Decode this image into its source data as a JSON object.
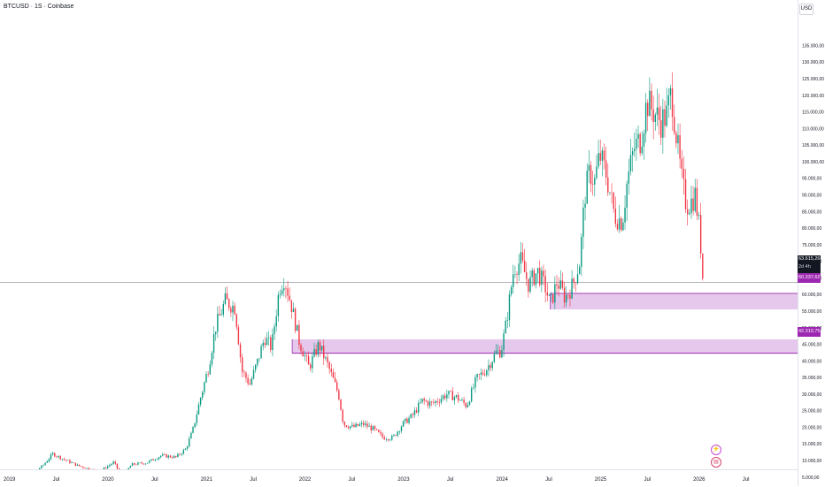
{
  "header": {
    "symbol_title": "BTCUSD · 1S · Coinbase",
    "currency": "USD"
  },
  "price_axis": {
    "ticks": [
      135000,
      130000,
      125000,
      120000,
      115000,
      110000,
      105000,
      100000,
      95000,
      90000,
      85000,
      80000,
      75000,
      70000,
      65000,
      60000,
      55000,
      50000,
      45000,
      40000,
      35000,
      30000,
      25000,
      20000,
      15000,
      10000,
      5000
    ],
    "tick_labels": [
      "135.000,00",
      "130.000,00",
      "125.000,00",
      "120.000,00",
      "115.000,00",
      "110.000,00",
      "105.000,00",
      "100.000,00",
      "95.000,00",
      "90.000,00",
      "85.000,00",
      "80.000,00",
      "75.000,00",
      "70.000,00",
      "65.000,00",
      "60.000,00",
      "55.000,00",
      "50.000,00",
      "45.000,00",
      "40.000,00",
      "35.000,00",
      "30.000,00",
      "25.000,00",
      "20.000,00",
      "15.000,00",
      "10.000,00",
      "5.000,00"
    ]
  },
  "time_axis": {
    "labels": [
      {
        "text": "2019",
        "date": 2019.0
      },
      {
        "text": "Jul",
        "date": 2019.5
      },
      {
        "text": "2020",
        "date": 2020.0
      },
      {
        "text": "Jul",
        "date": 2020.5
      },
      {
        "text": "2021",
        "date": 2021.0
      },
      {
        "text": "Jul",
        "date": 2021.5
      },
      {
        "text": "2022",
        "date": 2022.0
      },
      {
        "text": "Jul",
        "date": 2022.5
      },
      {
        "text": "2023",
        "date": 2023.0
      },
      {
        "text": "Jul",
        "date": 2023.5
      },
      {
        "text": "2024",
        "date": 2024.0
      },
      {
        "text": "Jul",
        "date": 2024.5
      },
      {
        "text": "2025",
        "date": 2025.0
      },
      {
        "text": "Jul",
        "date": 2025.5
      },
      {
        "text": "2026",
        "date": 2026.0
      },
      {
        "text": "Jul",
        "date": 2026.5
      }
    ]
  },
  "badges": {
    "current_price": "63.615,26",
    "countdown": "2d 4h",
    "zone1_label": "60.337,62",
    "zone2_label": "42.310,75"
  },
  "colors": {
    "up": "#089981",
    "down": "#f23645",
    "zone_fill": "#e1bee7",
    "zone_border": "#9c27b0",
    "current_line": "#9598a1",
    "grid_text": "#131722"
  },
  "icons": {
    "event1": "lightning-icon",
    "event2": "us-flag-icon"
  },
  "chart_data": {
    "type": "candlestick",
    "title": "BTCUSD · 1S · Coinbase",
    "ylim": [
      2000,
      140000
    ],
    "xlim": [
      "2019-01",
      "2026-10"
    ],
    "current_price": 63615.26,
    "zones": [
      {
        "label": "60.337,62",
        "from_date": 2024.55,
        "low": 55500,
        "high": 60337.62
      },
      {
        "label": "42.310,75",
        "from_date": 2021.93,
        "low": 42310.75,
        "high": 46500
      }
    ],
    "close_path": [
      [
        2019.0,
        3800
      ],
      [
        2019.12,
        3900
      ],
      [
        2019.25,
        5000
      ],
      [
        2019.4,
        8500
      ],
      [
        2019.5,
        12000
      ],
      [
        2019.6,
        10500
      ],
      [
        2019.75,
        8500
      ],
      [
        2019.9,
        7200
      ],
      [
        2020.0,
        7200
      ],
      [
        2020.12,
        9500
      ],
      [
        2020.2,
        5000
      ],
      [
        2020.3,
        8800
      ],
      [
        2020.45,
        9300
      ],
      [
        2020.6,
        11500
      ],
      [
        2020.75,
        11000
      ],
      [
        2020.85,
        13500
      ],
      [
        2020.92,
        19000
      ],
      [
        2021.0,
        29000
      ],
      [
        2021.08,
        38000
      ],
      [
        2021.15,
        50000
      ],
      [
        2021.25,
        58000
      ],
      [
        2021.35,
        56000
      ],
      [
        2021.42,
        37000
      ],
      [
        2021.5,
        33000
      ],
      [
        2021.58,
        40000
      ],
      [
        2021.65,
        47000
      ],
      [
        2021.72,
        44000
      ],
      [
        2021.8,
        62000
      ],
      [
        2021.85,
        65000
      ],
      [
        2021.92,
        57000
      ],
      [
        2022.0,
        46000
      ],
      [
        2022.1,
        38000
      ],
      [
        2022.2,
        45000
      ],
      [
        2022.3,
        38000
      ],
      [
        2022.4,
        30000
      ],
      [
        2022.45,
        21000
      ],
      [
        2022.55,
        20000
      ],
      [
        2022.65,
        21000
      ],
      [
        2022.75,
        19500
      ],
      [
        2022.85,
        17000
      ],
      [
        2022.95,
        16800
      ],
      [
        2023.05,
        21000
      ],
      [
        2023.15,
        23500
      ],
      [
        2023.25,
        28000
      ],
      [
        2023.35,
        27000
      ],
      [
        2023.5,
        30000
      ],
      [
        2023.6,
        29000
      ],
      [
        2023.7,
        26500
      ],
      [
        2023.8,
        34500
      ],
      [
        2023.9,
        37500
      ],
      [
        2024.0,
        42500
      ],
      [
        2024.05,
        43000
      ],
      [
        2024.1,
        51000
      ],
      [
        2024.18,
        68000
      ],
      [
        2024.25,
        70000
      ],
      [
        2024.33,
        63000
      ],
      [
        2024.42,
        67000
      ],
      [
        2024.5,
        62000
      ],
      [
        2024.55,
        57000
      ],
      [
        2024.62,
        64000
      ],
      [
        2024.7,
        59000
      ],
      [
        2024.78,
        63000
      ],
      [
        2024.85,
        70000
      ],
      [
        2024.9,
        90000
      ],
      [
        2024.95,
        97000
      ],
      [
        2025.0,
        94000
      ],
      [
        2025.05,
        102000
      ],
      [
        2025.12,
        96000
      ],
      [
        2025.2,
        84000
      ],
      [
        2025.28,
        82000
      ],
      [
        2025.33,
        94000
      ],
      [
        2025.4,
        104000
      ],
      [
        2025.47,
        107000
      ],
      [
        2025.53,
        118000
      ],
      [
        2025.6,
        115000
      ],
      [
        2025.67,
        112000
      ],
      [
        2025.73,
        114000
      ],
      [
        2025.78,
        121000
      ],
      [
        2025.82,
        110000
      ],
      [
        2025.88,
        95000
      ],
      [
        2025.93,
        87000
      ],
      [
        2025.98,
        88000
      ],
      [
        2026.02,
        90000
      ],
      [
        2026.07,
        78000
      ],
      [
        2026.1,
        63615.26
      ]
    ]
  }
}
